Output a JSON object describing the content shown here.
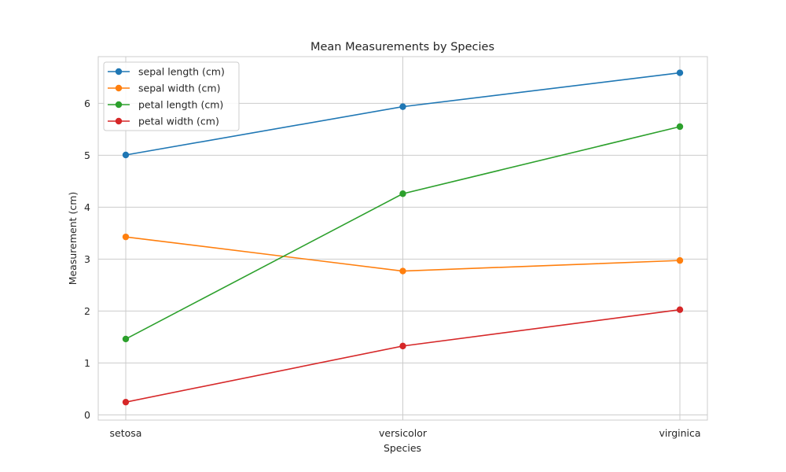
{
  "chart_data": {
    "type": "line",
    "title": "Mean Measurements by Species",
    "xlabel": "Species",
    "ylabel": "Measurement (cm)",
    "categories": [
      "setosa",
      "versicolor",
      "virginica"
    ],
    "ylim": [
      -0.1,
      6.9
    ],
    "yticks": [
      0,
      1,
      2,
      3,
      4,
      5,
      6
    ],
    "grid": true,
    "legend_position": "upper-left",
    "series": [
      {
        "name": "sepal length (cm)",
        "color": "#1f77b4",
        "values": [
          5.006,
          5.936,
          6.588
        ]
      },
      {
        "name": "sepal width (cm)",
        "color": "#ff7f0e",
        "values": [
          3.428,
          2.77,
          2.974
        ]
      },
      {
        "name": "petal length (cm)",
        "color": "#2ca02c",
        "values": [
          1.462,
          4.26,
          5.552
        ]
      },
      {
        "name": "petal width (cm)",
        "color": "#d62728",
        "values": [
          0.246,
          1.326,
          2.026
        ]
      }
    ]
  }
}
